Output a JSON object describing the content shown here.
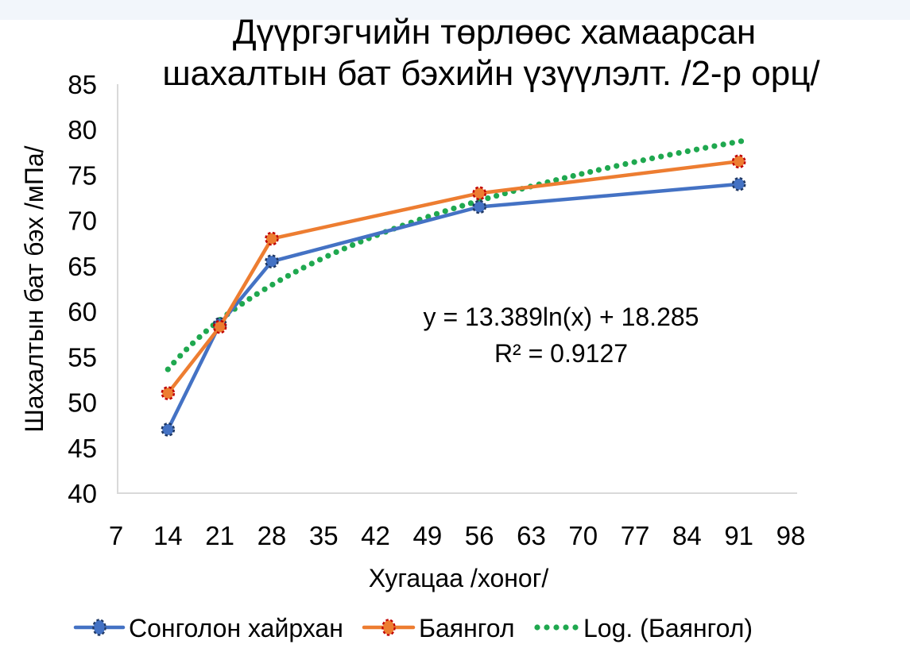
{
  "page": {
    "background_color": "#ffffff",
    "top_strip_color": "#f2f6fb"
  },
  "chart_data": {
    "type": "line",
    "title_lines": [
      "Дүүргэгчийн төрлөөс хамаарсан",
      "шахалтын бат бэхийн үзүүлэлт. /2-р орц/"
    ],
    "xlabel": "Хугацаа /хоног/",
    "ylabel": "Шахалтын бат бэх /мПа/",
    "x_ticks": [
      7,
      14,
      21,
      28,
      35,
      42,
      49,
      56,
      63,
      70,
      77,
      84,
      91,
      98
    ],
    "y_ticks": [
      40,
      45,
      50,
      55,
      60,
      65,
      70,
      75,
      80,
      85
    ],
    "xlim": [
      7,
      98.8
    ],
    "ylim": [
      40,
      85
    ],
    "grid": false,
    "axis_color": "#d9d9d9",
    "legend_position": "bottom",
    "series": [
      {
        "name": "Сонголон хайрхан",
        "color": "#4472c4",
        "marker_ring_color": "#1f3864",
        "x": [
          14,
          21,
          28,
          56,
          91
        ],
        "values": [
          47,
          58.6,
          65.5,
          71.5,
          74
        ]
      },
      {
        "name": "Баянгол",
        "color": "#ed7d31",
        "marker_ring_color": "#c00000",
        "x": [
          14,
          21,
          28,
          56,
          91
        ],
        "values": [
          51,
          58.3,
          68,
          73,
          76.5
        ]
      }
    ],
    "trendline": {
      "name": "Log. (Баянгол)",
      "color": "#1fa84f",
      "fit_type": "logarithmic",
      "a": 13.389,
      "b": 18.285,
      "x_start": 14,
      "x_end": 92,
      "equation_label": "y = 13.389ln(x) + 18.285",
      "r_squared_label": "R² = 0.9127"
    }
  }
}
